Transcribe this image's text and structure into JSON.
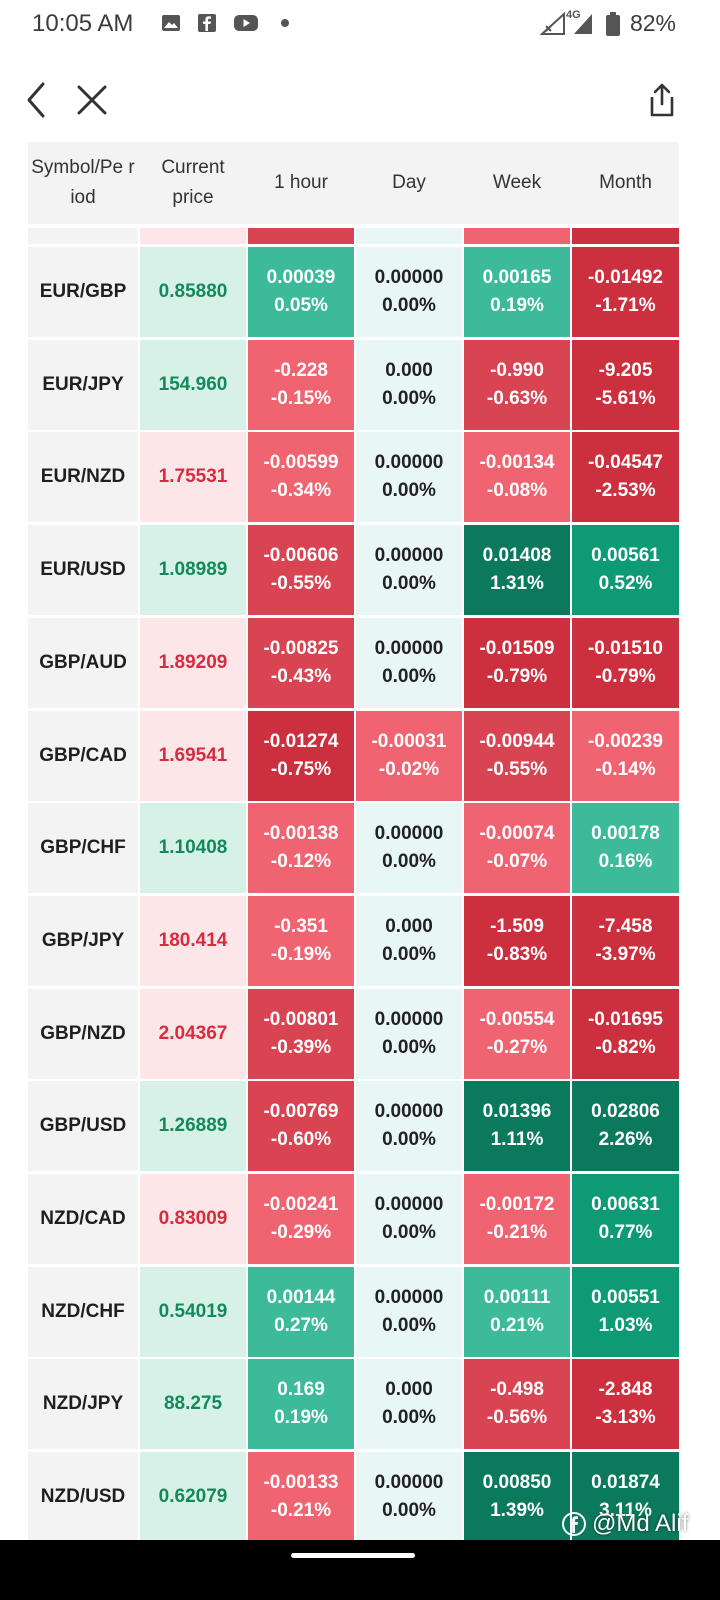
{
  "status_bar": {
    "time": "10:05 AM",
    "network_label": "4G",
    "battery": "82%",
    "icons_left": [
      "gallery-icon",
      "facebook-icon",
      "youtube-icon",
      "dot-icon"
    ],
    "icons_right": [
      "signal-icon",
      "battery-icon"
    ]
  },
  "nav": {
    "back_icon": "chevron-left-icon",
    "close_icon": "close-icon",
    "share_icon": "share-icon"
  },
  "table": {
    "headers": [
      "Symbol/Pe riod",
      "Current price",
      "1 hour",
      "Day",
      "Week",
      "Month"
    ],
    "rows": [
      {
        "symbol": "EUR/GBP",
        "price": "0.85880",
        "price_dir": "up",
        "h1": [
          "0.00039",
          "0.05%"
        ],
        "day": [
          "0.00000",
          "0.00%"
        ],
        "week": [
          "0.00165",
          "0.19%"
        ],
        "month": [
          "-0.01492",
          "-1.71%"
        ]
      },
      {
        "symbol": "EUR/JPY",
        "price": "154.960",
        "price_dir": "up",
        "h1": [
          "-0.228",
          "-0.15%"
        ],
        "day": [
          "0.000",
          "0.00%"
        ],
        "week": [
          "-0.990",
          "-0.63%"
        ],
        "month": [
          "-9.205",
          "-5.61%"
        ]
      },
      {
        "symbol": "EUR/NZD",
        "price": "1.75531",
        "price_dir": "down",
        "h1": [
          "-0.00599",
          "-0.34%"
        ],
        "day": [
          "0.00000",
          "0.00%"
        ],
        "week": [
          "-0.00134",
          "-0.08%"
        ],
        "month": [
          "-0.04547",
          "-2.53%"
        ]
      },
      {
        "symbol": "EUR/USD",
        "price": "1.08989",
        "price_dir": "up",
        "h1": [
          "-0.00606",
          "-0.55%"
        ],
        "day": [
          "0.00000",
          "0.00%"
        ],
        "week": [
          "0.01408",
          "1.31%"
        ],
        "month": [
          "0.00561",
          "0.52%"
        ]
      },
      {
        "symbol": "GBP/AUD",
        "price": "1.89209",
        "price_dir": "down",
        "h1": [
          "-0.00825",
          "-0.43%"
        ],
        "day": [
          "0.00000",
          "0.00%"
        ],
        "week": [
          "-0.01509",
          "-0.79%"
        ],
        "month": [
          "-0.01510",
          "-0.79%"
        ]
      },
      {
        "symbol": "GBP/CAD",
        "price": "1.69541",
        "price_dir": "down",
        "h1": [
          "-0.01274",
          "-0.75%"
        ],
        "day": [
          "-0.00031",
          "-0.02%"
        ],
        "week": [
          "-0.00944",
          "-0.55%"
        ],
        "month": [
          "-0.00239",
          "-0.14%"
        ]
      },
      {
        "symbol": "GBP/CHF",
        "price": "1.10408",
        "price_dir": "up",
        "h1": [
          "-0.00138",
          "-0.12%"
        ],
        "day": [
          "0.00000",
          "0.00%"
        ],
        "week": [
          "-0.00074",
          "-0.07%"
        ],
        "month": [
          "0.00178",
          "0.16%"
        ]
      },
      {
        "symbol": "GBP/JPY",
        "price": "180.414",
        "price_dir": "down",
        "h1": [
          "-0.351",
          "-0.19%"
        ],
        "day": [
          "0.000",
          "0.00%"
        ],
        "week": [
          "-1.509",
          "-0.83%"
        ],
        "month": [
          "-7.458",
          "-3.97%"
        ]
      },
      {
        "symbol": "GBP/NZD",
        "price": "2.04367",
        "price_dir": "down",
        "h1": [
          "-0.00801",
          "-0.39%"
        ],
        "day": [
          "0.00000",
          "0.00%"
        ],
        "week": [
          "-0.00554",
          "-0.27%"
        ],
        "month": [
          "-0.01695",
          "-0.82%"
        ]
      },
      {
        "symbol": "GBP/USD",
        "price": "1.26889",
        "price_dir": "up",
        "h1": [
          "-0.00769",
          "-0.60%"
        ],
        "day": [
          "0.00000",
          "0.00%"
        ],
        "week": [
          "0.01396",
          "1.11%"
        ],
        "month": [
          "0.02806",
          "2.26%"
        ]
      },
      {
        "symbol": "NZD/CAD",
        "price": "0.83009",
        "price_dir": "down",
        "h1": [
          "-0.00241",
          "-0.29%"
        ],
        "day": [
          "0.00000",
          "0.00%"
        ],
        "week": [
          "-0.00172",
          "-0.21%"
        ],
        "month": [
          "0.00631",
          "0.77%"
        ]
      },
      {
        "symbol": "NZD/CHF",
        "price": "0.54019",
        "price_dir": "up",
        "h1": [
          "0.00144",
          "0.27%"
        ],
        "day": [
          "0.00000",
          "0.00%"
        ],
        "week": [
          "0.00111",
          "0.21%"
        ],
        "month": [
          "0.00551",
          "1.03%"
        ]
      },
      {
        "symbol": "NZD/JPY",
        "price": "88.275",
        "price_dir": "up",
        "h1": [
          "0.169",
          "0.19%"
        ],
        "day": [
          "0.000",
          "0.00%"
        ],
        "week": [
          "-0.498",
          "-0.56%"
        ],
        "month": [
          "-2.848",
          "-3.13%"
        ]
      },
      {
        "symbol": "NZD/USD",
        "price": "0.62079",
        "price_dir": "up",
        "h1": [
          "-0.00133",
          "-0.21%"
        ],
        "day": [
          "0.00000",
          "0.00%"
        ],
        "week": [
          "0.00850",
          "1.39%"
        ],
        "month": [
          "0.01874",
          "3.11%"
        ]
      }
    ],
    "partial_top_colors": [
      "#f3f3f3",
      "#fde6e8",
      "#d94452",
      "#e8f6f6",
      "#f06472",
      "#cc2f3d"
    ]
  },
  "colors": {
    "neutral": "#e8f6f6",
    "pos_light": "#3cba9a",
    "pos_mid": "#0e9a74",
    "pos_dark": "#0b7a5c",
    "neg_light": "#f06472",
    "neg_mid": "#d94452",
    "neg_dark": "#cc2f3d"
  },
  "watermark": "@Md Alif"
}
